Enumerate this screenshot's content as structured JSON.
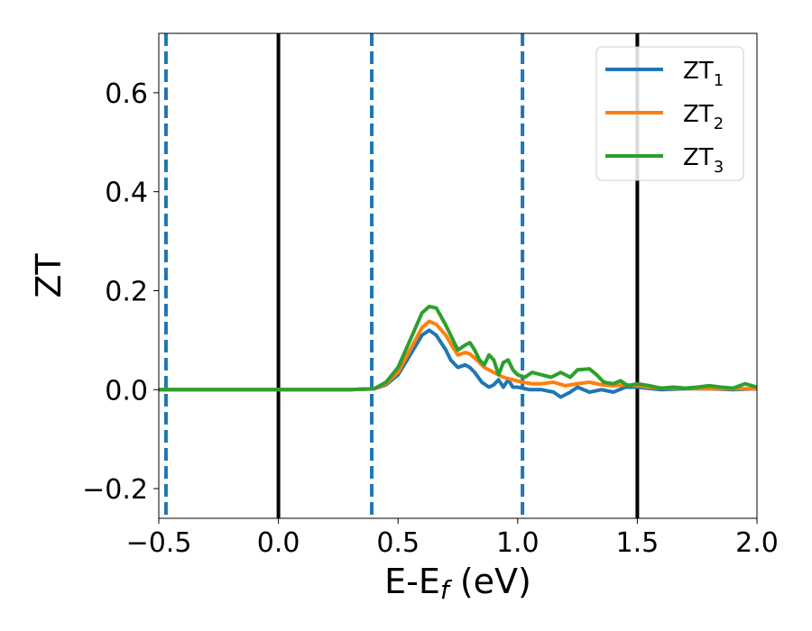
{
  "chart_data": {
    "type": "line",
    "xlabel": "E-E",
    "xlabel_sub": "f",
    "xlabel_unit": " (eV)",
    "ylabel": "ZT",
    "xlim": [
      -0.5,
      2.0
    ],
    "ylim": [
      -0.26,
      0.72
    ],
    "xticks": [
      -0.5,
      0.0,
      0.5,
      1.0,
      1.5,
      2.0
    ],
    "xtick_labels": [
      "−0.5",
      "0.0",
      "0.5",
      "1.0",
      "1.5",
      "2.0"
    ],
    "yticks": [
      -0.2,
      0.0,
      0.2,
      0.4,
      0.6
    ],
    "ytick_labels": [
      "−0.2",
      "0.0",
      "0.2",
      "0.4",
      "0.6"
    ],
    "grid": false,
    "legend_position": "top-right",
    "vertical_lines": [
      {
        "x": -0.47,
        "style": "dashed",
        "color": "#1f77b4"
      },
      {
        "x": 0.0,
        "style": "solid",
        "color": "#000000"
      },
      {
        "x": 0.39,
        "style": "dashed",
        "color": "#1f77b4"
      },
      {
        "x": 1.02,
        "style": "dashed",
        "color": "#1f77b4"
      },
      {
        "x": 1.5,
        "style": "solid",
        "color": "#000000"
      }
    ],
    "series": [
      {
        "name": "ZT",
        "name_sub": "1",
        "color": "#1f77b4",
        "points": [
          [
            -0.5,
            0
          ],
          [
            0.3,
            0
          ],
          [
            0.4,
            0.002
          ],
          [
            0.45,
            0.01
          ],
          [
            0.5,
            0.03
          ],
          [
            0.55,
            0.07
          ],
          [
            0.6,
            0.11
          ],
          [
            0.63,
            0.12
          ],
          [
            0.66,
            0.11
          ],
          [
            0.7,
            0.08
          ],
          [
            0.72,
            0.06
          ],
          [
            0.75,
            0.045
          ],
          [
            0.78,
            0.05
          ],
          [
            0.8,
            0.045
          ],
          [
            0.82,
            0.035
          ],
          [
            0.85,
            0.015
          ],
          [
            0.88,
            0.005
          ],
          [
            0.9,
            0.01
          ],
          [
            0.92,
            0.02
          ],
          [
            0.94,
            0.005
          ],
          [
            0.96,
            0.02
          ],
          [
            0.98,
            0.005
          ],
          [
            1.0,
            0.005
          ],
          [
            1.05,
            0.0
          ],
          [
            1.1,
            0.0
          ],
          [
            1.15,
            -0.005
          ],
          [
            1.18,
            -0.015
          ],
          [
            1.22,
            -0.005
          ],
          [
            1.25,
            0.005
          ],
          [
            1.3,
            -0.005
          ],
          [
            1.35,
            0.0
          ],
          [
            1.4,
            -0.005
          ],
          [
            1.45,
            0.005
          ],
          [
            1.5,
            0.005
          ],
          [
            1.6,
            0.0
          ],
          [
            1.7,
            0.002
          ],
          [
            1.8,
            0.002
          ],
          [
            1.9,
            0.0
          ],
          [
            2.0,
            0.002
          ]
        ]
      },
      {
        "name": "ZT",
        "name_sub": "2",
        "color": "#ff7f0e",
        "points": [
          [
            -0.5,
            0
          ],
          [
            0.3,
            0
          ],
          [
            0.4,
            0.002
          ],
          [
            0.45,
            0.012
          ],
          [
            0.5,
            0.035
          ],
          [
            0.55,
            0.08
          ],
          [
            0.6,
            0.125
          ],
          [
            0.63,
            0.138
          ],
          [
            0.66,
            0.132
          ],
          [
            0.7,
            0.11
          ],
          [
            0.73,
            0.085
          ],
          [
            0.75,
            0.07
          ],
          [
            0.78,
            0.075
          ],
          [
            0.8,
            0.072
          ],
          [
            0.83,
            0.06
          ],
          [
            0.86,
            0.045
          ],
          [
            0.9,
            0.035
          ],
          [
            0.94,
            0.025
          ],
          [
            0.98,
            0.02
          ],
          [
            1.02,
            0.015
          ],
          [
            1.06,
            0.012
          ],
          [
            1.1,
            0.012
          ],
          [
            1.15,
            0.015
          ],
          [
            1.2,
            0.008
          ],
          [
            1.25,
            0.012
          ],
          [
            1.3,
            0.015
          ],
          [
            1.35,
            0.01
          ],
          [
            1.4,
            0.008
          ],
          [
            1.45,
            0.01
          ],
          [
            1.5,
            0.008
          ],
          [
            1.55,
            0.005
          ],
          [
            1.6,
            0.003
          ],
          [
            1.7,
            0.003
          ],
          [
            1.8,
            0.002
          ],
          [
            1.9,
            0.002
          ],
          [
            2.0,
            0.002
          ]
        ]
      },
      {
        "name": "ZT",
        "name_sub": "3",
        "color": "#2ca02c",
        "points": [
          [
            -0.5,
            0
          ],
          [
            0.3,
            0
          ],
          [
            0.4,
            0.002
          ],
          [
            0.45,
            0.015
          ],
          [
            0.5,
            0.045
          ],
          [
            0.55,
            0.1
          ],
          [
            0.6,
            0.155
          ],
          [
            0.63,
            0.168
          ],
          [
            0.66,
            0.165
          ],
          [
            0.7,
            0.13
          ],
          [
            0.73,
            0.1
          ],
          [
            0.75,
            0.08
          ],
          [
            0.78,
            0.09
          ],
          [
            0.8,
            0.095
          ],
          [
            0.82,
            0.08
          ],
          [
            0.84,
            0.06
          ],
          [
            0.86,
            0.05
          ],
          [
            0.88,
            0.07
          ],
          [
            0.9,
            0.06
          ],
          [
            0.92,
            0.03
          ],
          [
            0.94,
            0.055
          ],
          [
            0.96,
            0.06
          ],
          [
            0.98,
            0.04
          ],
          [
            1.0,
            0.03
          ],
          [
            1.03,
            0.025
          ],
          [
            1.06,
            0.035
          ],
          [
            1.1,
            0.03
          ],
          [
            1.14,
            0.025
          ],
          [
            1.18,
            0.035
          ],
          [
            1.22,
            0.025
          ],
          [
            1.25,
            0.04
          ],
          [
            1.3,
            0.042
          ],
          [
            1.33,
            0.03
          ],
          [
            1.36,
            0.015
          ],
          [
            1.4,
            0.012
          ],
          [
            1.43,
            0.018
          ],
          [
            1.46,
            0.008
          ],
          [
            1.5,
            0.012
          ],
          [
            1.55,
            0.008
          ],
          [
            1.6,
            0.003
          ],
          [
            1.65,
            0.005
          ],
          [
            1.7,
            0.003
          ],
          [
            1.75,
            0.005
          ],
          [
            1.8,
            0.008
          ],
          [
            1.85,
            0.005
          ],
          [
            1.9,
            0.003
          ],
          [
            1.95,
            0.012
          ],
          [
            2.0,
            0.005
          ]
        ]
      }
    ]
  }
}
